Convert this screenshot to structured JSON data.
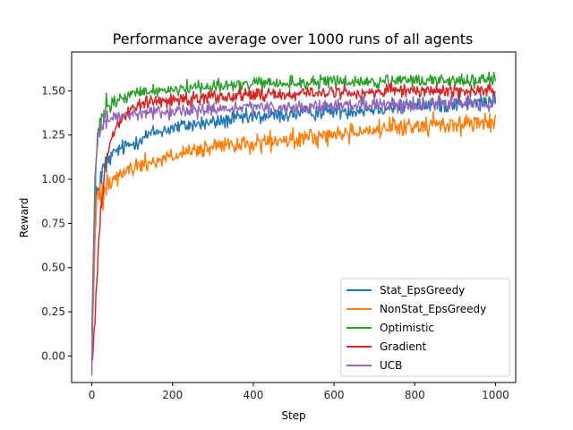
{
  "chart_data": {
    "type": "line",
    "title": "Performance average over 1000 runs of all agents",
    "xlabel": "Step",
    "ylabel": "Reward",
    "xlim": [
      -50,
      1050
    ],
    "ylim": [
      -0.15,
      1.72
    ],
    "xticks": [
      0,
      200,
      400,
      600,
      800,
      1000
    ],
    "yticks": [
      0.0,
      0.25,
      0.5,
      0.75,
      1.0,
      1.25,
      1.5
    ],
    "ytick_labels": [
      "0.00",
      "0.25",
      "0.50",
      "0.75",
      "1.00",
      "1.25",
      "1.50"
    ],
    "grid": false,
    "legend_position": "lower-right",
    "x": [
      0,
      5,
      10,
      15,
      20,
      30,
      40,
      50,
      60,
      80,
      100,
      120,
      150,
      200,
      250,
      300,
      350,
      400,
      450,
      500,
      550,
      600,
      650,
      700,
      750,
      800,
      850,
      900,
      950,
      1000
    ],
    "series": [
      {
        "name": "Stat_EpsGreedy",
        "color": "#1f77b4",
        "noise": 0.035,
        "values": [
          0.05,
          0.45,
          0.82,
          0.95,
          1.0,
          1.05,
          1.1,
          1.13,
          1.16,
          1.18,
          1.2,
          1.23,
          1.26,
          1.29,
          1.31,
          1.32,
          1.34,
          1.35,
          1.36,
          1.37,
          1.38,
          1.39,
          1.39,
          1.4,
          1.41,
          1.42,
          1.42,
          1.43,
          1.43,
          1.44
        ]
      },
      {
        "name": "NonStat_EpsGreedy",
        "color": "#ff7f0e",
        "noise": 0.04,
        "values": [
          0.02,
          0.4,
          0.8,
          0.88,
          0.93,
          0.97,
          0.99,
          1.0,
          1.02,
          1.04,
          1.06,
          1.08,
          1.1,
          1.13,
          1.15,
          1.18,
          1.19,
          1.2,
          1.21,
          1.22,
          1.24,
          1.25,
          1.27,
          1.28,
          1.29,
          1.3,
          1.31,
          1.31,
          1.32,
          1.32
        ]
      },
      {
        "name": "Optimistic",
        "color": "#2ca02c",
        "noise": 0.03,
        "values": [
          0.1,
          0.7,
          1.1,
          1.2,
          1.3,
          1.37,
          1.4,
          1.42,
          1.44,
          1.46,
          1.48,
          1.49,
          1.5,
          1.51,
          1.52,
          1.53,
          1.53,
          1.54,
          1.54,
          1.54,
          1.55,
          1.55,
          1.55,
          1.55,
          1.55,
          1.56,
          1.56,
          1.56,
          1.56,
          1.56
        ]
      },
      {
        "name": "Gradient",
        "color": "#d62728",
        "noise": 0.03,
        "values": [
          0.02,
          0.1,
          0.35,
          0.55,
          0.75,
          1.0,
          1.15,
          1.25,
          1.3,
          1.36,
          1.4,
          1.42,
          1.44,
          1.45,
          1.46,
          1.47,
          1.47,
          1.48,
          1.48,
          1.48,
          1.49,
          1.49,
          1.49,
          1.49,
          1.5,
          1.5,
          1.5,
          1.5,
          1.5,
          1.5
        ]
      },
      {
        "name": "UCB",
        "color": "#9467bd",
        "noise": 0.03,
        "values": [
          -0.05,
          0.6,
          1.05,
          1.2,
          1.26,
          1.3,
          1.32,
          1.34,
          1.35,
          1.36,
          1.37,
          1.37,
          1.38,
          1.38,
          1.39,
          1.39,
          1.4,
          1.4,
          1.4,
          1.41,
          1.41,
          1.41,
          1.42,
          1.42,
          1.42,
          1.42,
          1.43,
          1.43,
          1.43,
          1.43
        ]
      }
    ]
  }
}
